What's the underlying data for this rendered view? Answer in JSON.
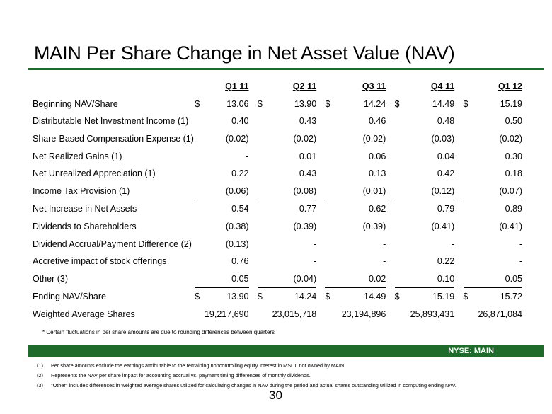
{
  "title": "MAIN Per Share Change in Net Asset Value (NAV)",
  "columns": [
    "Q1 11",
    "Q2 11",
    "Q3 11",
    "Q4 11",
    "Q1 12"
  ],
  "rows": [
    {
      "label": "Beginning NAV/Share",
      "cur": true,
      "values": [
        "13.06",
        "13.90",
        "14.24",
        "14.49",
        "15.19"
      ]
    },
    {
      "label": "Distributable Net Investment Income (1)",
      "values": [
        "0.40",
        "0.43",
        "0.46",
        "0.48",
        "0.50"
      ]
    },
    {
      "label": "Share-Based Compensation Expense (1)",
      "values": [
        "(0.02)",
        "(0.02)",
        "(0.02)",
        "(0.03)",
        "(0.02)"
      ]
    },
    {
      "label": "Net Realized Gains (1)",
      "values": [
        "-",
        "0.01",
        "0.06",
        "0.04",
        "0.30"
      ]
    },
    {
      "label": "Net Unrealized Appreciation (1)",
      "values": [
        "0.22",
        "0.43",
        "0.13",
        "0.42",
        "0.18"
      ]
    },
    {
      "label": "Income Tax Provision (1)",
      "underline": true,
      "values": [
        "(0.06)",
        "(0.08)",
        "(0.01)",
        "(0.12)",
        "(0.07)"
      ]
    },
    {
      "label": "Net Increase in Net Assets",
      "values": [
        "0.54",
        "0.77",
        "0.62",
        "0.79",
        "0.89"
      ]
    },
    {
      "label": "Dividends to Shareholders",
      "values": [
        "(0.38)",
        "(0.39)",
        "(0.39)",
        "(0.41)",
        "(0.41)"
      ]
    },
    {
      "label": "Dividend Accrual/Payment Difference (2)",
      "values": [
        "(0.13)",
        "-",
        "-",
        "-",
        "-"
      ]
    },
    {
      "label": "Accretive impact of stock offerings",
      "values": [
        "0.76",
        "-",
        "-",
        "0.22",
        "-"
      ]
    },
    {
      "label": "Other (3)",
      "underline": true,
      "values": [
        "0.05",
        "(0.04)",
        "0.02",
        "0.10",
        "0.05"
      ]
    },
    {
      "label": "Ending NAV/Share",
      "cur": true,
      "values": [
        "13.90",
        "14.24",
        "14.49",
        "15.19",
        "15.72"
      ]
    },
    {
      "label": "Weighted Average Shares",
      "values": [
        "19,217,690",
        "23,015,718",
        "23,194,896",
        "25,893,431",
        "26,871,084"
      ]
    }
  ],
  "currency_symbol": "$",
  "rounding_note": "* Certain fluctuations in per share amounts are due to rounding differences between quarters",
  "ticker": "NYSE:  MAIN",
  "footnotes": [
    {
      "num": "(1)",
      "text": "Per share amounts exclude the earnings attributable to the remaining noncontrolling equity interest in MSCII not owned by MAIN."
    },
    {
      "num": "(2)",
      "text": "Represents the NAV per share impact for accounting accrual vs. payment timing differences of monthly dividends."
    },
    {
      "num": "(3)",
      "text": "\"Other\" includes differences in weighted average shares utilized for calculating changes in NAV during the period and actual shares outstanding utilized in computing ending NAV."
    }
  ],
  "page_number": "30",
  "colors": {
    "accent": "#1e6b2b"
  }
}
